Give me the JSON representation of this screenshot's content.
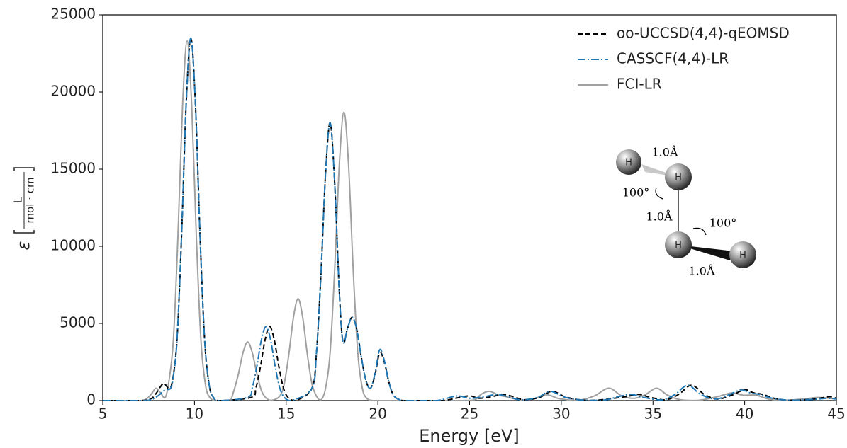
{
  "chart_data": {
    "type": "line",
    "x_label": "Energy [eV]",
    "y_label": "ε",
    "y_unit_numerator": "L",
    "y_unit_denominator": "mol · cm",
    "xlim": [
      5,
      45
    ],
    "xticks": [
      5,
      10,
      15,
      20,
      25,
      30,
      35,
      40,
      45
    ],
    "ylim": [
      0,
      25000
    ],
    "yticks": [
      0,
      5000,
      10000,
      15000,
      20000,
      25000
    ],
    "legend": "upper right",
    "series": [
      {
        "name": "oo-UCCSD(4,4)-qEOMSD",
        "color": "#000000",
        "style": "dashed",
        "x": [
          5,
          7,
          7.6,
          7.9,
          8.3,
          8.6,
          8.8,
          9.05,
          9.3,
          9.55,
          9.8,
          10.05,
          10.3,
          10.55,
          10.8,
          11.05,
          11.4,
          13.1,
          13.35,
          13.6,
          13.85,
          14.1,
          14.35,
          14.6,
          14.85,
          15.1,
          15.5,
          16.4,
          16.65,
          16.9,
          17.15,
          17.4,
          17.65,
          17.9,
          18.1,
          18.35,
          18.6,
          18.85,
          19.1,
          19.35,
          19.6,
          19.85,
          20.1,
          20.35,
          20.6,
          20.85,
          21.2,
          21.6,
          23.5,
          24.9,
          25.5,
          26.2,
          26.8,
          27.4,
          28,
          28.8,
          29.5,
          30.2,
          31,
          32,
          33.5,
          34.2,
          34.9,
          35.7,
          36.4,
          37.1,
          37.8,
          38.5,
          39.3,
          40,
          40.5,
          41,
          41.6,
          42.5,
          43.8,
          44.6,
          45
        ],
        "values": [
          0,
          0,
          100,
          450,
          1100,
          800,
          1300,
          4000,
          10800,
          19300,
          23500,
          19300,
          10800,
          4000,
          1030,
          180,
          0,
          210,
          820,
          2210,
          3940,
          4800,
          3940,
          2210,
          820,
          210,
          0,
          790,
          3060,
          8280,
          14760,
          18000,
          14000,
          7000,
          3800,
          4700,
          5400,
          4600,
          2800,
          1300,
          800,
          1700,
          3100,
          2500,
          1200,
          350,
          50,
          0,
          0,
          300,
          150,
          250,
          400,
          250,
          50,
          200,
          600,
          250,
          50,
          30,
          250,
          400,
          200,
          50,
          400,
          1000,
          400,
          100,
          350,
          700,
          500,
          400,
          150,
          20,
          100,
          250,
          150
        ]
      },
      {
        "name": "CASSCF(4,4)-LR",
        "color": "#1f77b4",
        "style": "dashdot",
        "x": [
          5,
          7,
          7.6,
          8.0,
          8.4,
          8.7,
          8.85,
          9.05,
          9.3,
          9.55,
          9.8,
          10.05,
          10.3,
          10.55,
          10.8,
          11.05,
          11.4,
          12.9,
          13.15,
          13.4,
          13.65,
          13.9,
          14.15,
          14.4,
          14.65,
          14.9,
          15.3,
          16.4,
          16.65,
          16.9,
          17.15,
          17.4,
          17.65,
          17.9,
          18.1,
          18.35,
          18.6,
          18.85,
          19.1,
          19.35,
          19.6,
          19.85,
          20.1,
          20.35,
          20.6,
          20.85,
          21.2,
          21.6,
          23.2,
          24.3,
          25,
          25.8,
          26.5,
          27.1,
          27.8,
          28.7,
          29.4,
          30.1,
          31,
          32.3,
          33.1,
          33.8,
          34.5,
          35.5,
          36.2,
          36.9,
          37.6,
          38.4,
          39.1,
          39.8,
          40.3,
          40.8,
          41.5,
          42.5,
          43.8,
          44.5,
          45
        ],
        "values": [
          0,
          0,
          50,
          300,
          700,
          800,
          1600,
          4000,
          10800,
          19300,
          23500,
          19300,
          10800,
          4000,
          1030,
          180,
          0,
          210,
          820,
          2210,
          3940,
          4800,
          3940,
          2210,
          820,
          210,
          0,
          790,
          3060,
          8280,
          14760,
          18000,
          14000,
          7000,
          3800,
          4700,
          5400,
          4600,
          2800,
          1300,
          800,
          1800,
          3300,
          2600,
          1200,
          350,
          50,
          0,
          0,
          300,
          150,
          250,
          400,
          250,
          50,
          200,
          600,
          250,
          50,
          30,
          250,
          400,
          200,
          50,
          400,
          1000,
          400,
          100,
          350,
          700,
          500,
          400,
          150,
          20,
          80,
          150,
          100
        ]
      },
      {
        "name": "FCI-LR",
        "color": "#a0a0a0",
        "style": "solid",
        "x": [
          5,
          7,
          7.4,
          7.65,
          7.9,
          8.15,
          8.4,
          8.6,
          8.85,
          9.1,
          9.35,
          9.6,
          9.85,
          10.1,
          10.35,
          10.6,
          10.85,
          11.2,
          11.9,
          12.15,
          12.4,
          12.65,
          12.9,
          13.15,
          13.4,
          13.65,
          13.9,
          14.2,
          14.65,
          14.9,
          15.15,
          15.4,
          15.65,
          15.9,
          16.15,
          16.4,
          16.65,
          16.9,
          17.15,
          17.4,
          17.65,
          17.9,
          18.15,
          18.4,
          18.65,
          18.9,
          19.15,
          19.4,
          19.8,
          21,
          24,
          25.2,
          25.5,
          25.75,
          26.1,
          26.6,
          27,
          27.5,
          28,
          28.6,
          29.2,
          29.8,
          30.3,
          31,
          31.8,
          32.6,
          33.3,
          34,
          34.6,
          35.2,
          35.8,
          36.5,
          37.5,
          38.5,
          39.3,
          39.9,
          40.6,
          41.3,
          42,
          43.2,
          44,
          45
        ],
        "values": [
          0,
          0,
          130,
          430,
          800,
          500,
          200,
          1200,
          3960,
          10700,
          19100,
          23300,
          19100,
          10700,
          3960,
          1025,
          180,
          0,
          0,
          650,
          1750,
          3120,
          3800,
          3120,
          1750,
          650,
          170,
          20,
          290,
          1120,
          3040,
          5410,
          6600,
          5410,
          3040,
          1120,
          290,
          50,
          820,
          3180,
          8600,
          15330,
          18700,
          15330,
          8600,
          3180,
          820,
          140,
          0,
          0,
          0,
          30,
          280,
          490,
          600,
          350,
          250,
          100,
          20,
          150,
          380,
          150,
          50,
          30,
          300,
          800,
          300,
          150,
          400,
          800,
          350,
          50,
          20,
          250,
          500,
          350,
          350,
          100,
          10,
          100,
          200,
          100
        ]
      }
    ],
    "annotations": [
      "1.0Å",
      "100°",
      "1.0Å",
      "100°",
      "1.0Å"
    ],
    "atom_labels": [
      "H",
      "H",
      "H",
      "H"
    ]
  }
}
